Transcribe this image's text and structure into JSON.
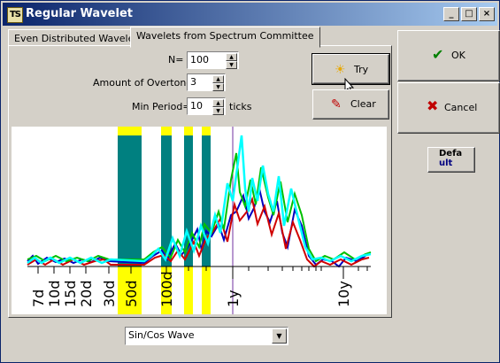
{
  "window": {
    "title": "Regular Wavelet",
    "icon_text": "TS"
  },
  "tabs": [
    {
      "label": "Even Distributed Wavelets",
      "active": false
    },
    {
      "label": "Wavelets from Spectrum Committee",
      "active": true
    }
  ],
  "form": {
    "n_label": "N=",
    "n_value": "100",
    "overtones_label": "Amount of Overtones",
    "overtones_value": "3",
    "min_period_label": "Min Period=",
    "min_period_value": "10",
    "min_period_unit": "ticks"
  },
  "buttons": {
    "try": "Try",
    "clear": "Clear",
    "ok": "OK",
    "cancel": "Cancel",
    "default_top": "Defa",
    "default_bottom": "ult"
  },
  "combo": {
    "value": "Sin/Cos Wave"
  },
  "colors": {
    "teal": "#008080",
    "yellow": "#ffff00",
    "cyan": "#00ffff",
    "green": "#00c000",
    "blue": "#0000c0",
    "red": "#d00000",
    "purple": "#7030a0"
  },
  "chart_data": {
    "type": "line",
    "x_scale": "log",
    "tick_labels": [
      "7d",
      "10d",
      "15d",
      "20d",
      "30d",
      "50d",
      "100d",
      "1y",
      "10y"
    ],
    "highlighted_periods": [
      "50d",
      "100d"
    ]
  }
}
